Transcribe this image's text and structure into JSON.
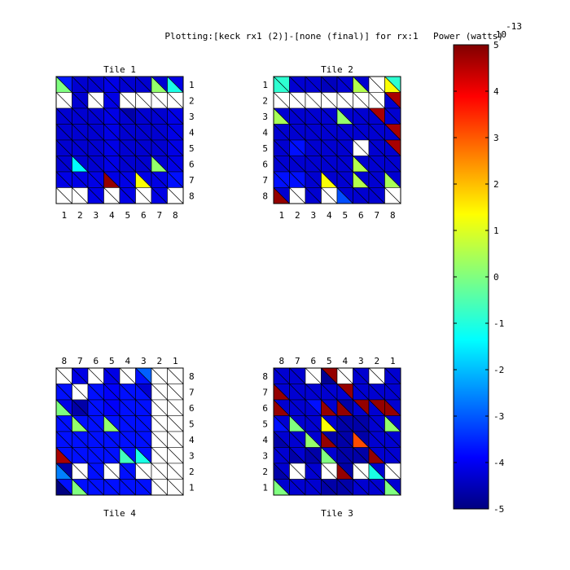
{
  "chart_data": {
    "type": "heatmap",
    "title": "Plotting:[keck rx1 (2)]-[none (final)] for rx:1",
    "colorbar": {
      "label": "Power (watts)",
      "exponent_label": "10",
      "exponent_power": "-13",
      "ticks": [
        5,
        4,
        3,
        2,
        1,
        0,
        -1,
        -2,
        -3,
        -4,
        -5
      ],
      "range": [
        -5,
        5
      ],
      "colormap": "jet"
    },
    "cell_encoding": "each cell split along its diagonal into two triangles (upper-right and lower-left); values in units of 1e-13 W; null = white/no data",
    "tiles": [
      {
        "title": "Tile 1",
        "col_labels": [
          "1",
          "2",
          "3",
          "4",
          "5",
          "6",
          "7",
          "8"
        ],
        "row_labels": [
          "1",
          "2",
          "3",
          "4",
          "5",
          "6",
          "7",
          "8"
        ],
        "upper": [
          [
            -3.5,
            -4.2,
            -4.2,
            -4.0,
            -4.2,
            -4.2,
            -4.2,
            -4.0
          ],
          [
            null,
            -4.2,
            null,
            -4.0,
            null,
            null,
            null,
            null
          ],
          [
            -4.2,
            -4.2,
            -4.2,
            -4.0,
            -4.6,
            -4.2,
            -4.2,
            -4.0
          ],
          [
            -4.2,
            -4.2,
            -4.2,
            -4.0,
            -4.2,
            -4.2,
            -4.2,
            -4.0
          ],
          [
            -4.2,
            -4.2,
            -4.2,
            -4.0,
            -4.2,
            -4.2,
            -4.2,
            -4.0
          ],
          [
            -4.2,
            -4.2,
            -4.2,
            -4.0,
            -4.2,
            -4.2,
            -4.2,
            -4.0
          ],
          [
            -4.0,
            -4.0,
            -4.0,
            -4.0,
            -4.0,
            -4.0,
            -4.0,
            -3.6
          ],
          [
            null,
            null,
            -4.0,
            null,
            -4.0,
            null,
            -4.0,
            null
          ]
        ],
        "lower": [
          [
            0.0,
            -4.2,
            -4.2,
            -4.0,
            -4.2,
            -4.2,
            0.2,
            -1.0
          ],
          [
            null,
            -4.2,
            null,
            -4.0,
            null,
            null,
            null,
            null
          ],
          [
            -4.2,
            -4.2,
            -4.2,
            -4.0,
            -4.2,
            -4.2,
            -4.2,
            -4.0
          ],
          [
            -4.2,
            -4.2,
            -4.2,
            -4.0,
            -4.2,
            -4.2,
            -4.2,
            -4.0
          ],
          [
            -4.2,
            -4.2,
            -4.2,
            -4.0,
            -4.2,
            -4.2,
            -4.2,
            -4.0
          ],
          [
            -4.2,
            -1.3,
            -4.2,
            -4.0,
            -4.2,
            -4.2,
            0.2,
            -4.0
          ],
          [
            -4.0,
            -4.0,
            -4.0,
            4.8,
            -4.0,
            1.2,
            -4.0,
            -3.6
          ],
          [
            null,
            null,
            -4.0,
            null,
            -4.0,
            null,
            -4.0,
            null
          ]
        ]
      },
      {
        "title": "Tile 2",
        "col_labels": [
          "1",
          "2",
          "3",
          "4",
          "5",
          "6",
          "7",
          "8"
        ],
        "row_labels": [
          "1",
          "2",
          "3",
          "4",
          "5",
          "6",
          "7",
          "8"
        ],
        "upper": [
          [
            -0.8,
            -4.2,
            -4.2,
            -4.4,
            -4.2,
            -4.2,
            null,
            -0.8
          ],
          [
            null,
            null,
            null,
            null,
            null,
            null,
            null,
            4.6
          ],
          [
            -4.2,
            -4.2,
            -4.2,
            -4.2,
            -4.2,
            -4.2,
            4.6,
            -4.2
          ],
          [
            -4.2,
            -4.2,
            -4.2,
            -4.2,
            -4.2,
            -4.2,
            -4.2,
            4.6
          ],
          [
            -4.2,
            -3.6,
            -4.2,
            -4.2,
            -4.2,
            null,
            -4.2,
            4.6
          ],
          [
            -4.2,
            -4.2,
            -4.2,
            -4.2,
            -4.2,
            -4.2,
            -4.2,
            -4.2
          ],
          [
            -3.6,
            -3.6,
            -4.2,
            -4.2,
            -4.2,
            -4.2,
            -4.2,
            -4.2
          ],
          [
            -4.2,
            null,
            -4.2,
            null,
            -4.2,
            -4.2,
            -4.2,
            null
          ]
        ],
        "lower": [
          [
            -0.8,
            -4.2,
            -4.2,
            -4.4,
            -4.2,
            0.5,
            null,
            1.2
          ],
          [
            null,
            null,
            null,
            null,
            null,
            null,
            null,
            -4.2
          ],
          [
            0.4,
            -4.2,
            -4.2,
            -4.2,
            0.2,
            -4.2,
            -4.2,
            -4.2
          ],
          [
            -4.2,
            -4.2,
            -4.2,
            -4.2,
            -4.2,
            -4.2,
            -4.2,
            -4.2
          ],
          [
            -4.2,
            -3.6,
            -4.2,
            -4.2,
            -4.2,
            null,
            -4.2,
            -4.2
          ],
          [
            -4.2,
            -4.2,
            -4.2,
            -4.2,
            -4.2,
            0.5,
            -4.2,
            -4.2
          ],
          [
            -3.6,
            -3.6,
            -4.2,
            1.2,
            -4.2,
            0.5,
            -4.2,
            0.4
          ],
          [
            4.8,
            null,
            -4.2,
            null,
            -3.0,
            -4.2,
            -4.2,
            null
          ]
        ]
      },
      {
        "title": "Tile 4",
        "col_labels": [
          "8",
          "7",
          "6",
          "5",
          "4",
          "3",
          "2",
          "1"
        ],
        "row_labels": [
          "8",
          "7",
          "6",
          "5",
          "4",
          "3",
          "2",
          "1"
        ],
        "upper": [
          [
            null,
            -4.0,
            null,
            -4.0,
            null,
            -2.8,
            null,
            null
          ],
          [
            -3.6,
            null,
            -3.6,
            -3.8,
            -3.6,
            -4.2,
            null,
            null
          ],
          [
            -4.0,
            -4.6,
            -3.6,
            -3.8,
            -3.6,
            -3.6,
            null,
            null
          ],
          [
            -3.6,
            -3.6,
            -3.6,
            -3.6,
            -3.6,
            -3.6,
            null,
            null
          ],
          [
            -3.6,
            -3.6,
            -3.6,
            -3.6,
            -3.6,
            -3.6,
            null,
            null
          ],
          [
            -3.6,
            -3.6,
            -3.6,
            -3.6,
            -3.6,
            -3.6,
            null,
            null
          ],
          [
            -4.6,
            null,
            -3.6,
            null,
            -3.6,
            null,
            null,
            null
          ],
          [
            -3.6,
            -3.6,
            -3.6,
            -3.6,
            -3.6,
            -3.6,
            null,
            null
          ]
        ],
        "lower": [
          [
            null,
            -4.0,
            null,
            -4.0,
            null,
            -3.6,
            null,
            null
          ],
          [
            -3.6,
            null,
            -3.6,
            -3.8,
            -3.6,
            -3.6,
            null,
            null
          ],
          [
            0.0,
            -4.6,
            -3.6,
            -3.8,
            -3.6,
            -3.6,
            null,
            null
          ],
          [
            -3.6,
            0.2,
            -3.6,
            0.2,
            -3.6,
            -3.6,
            null,
            null
          ],
          [
            -3.6,
            -3.6,
            -3.6,
            -3.6,
            -3.6,
            -3.6,
            null,
            null
          ],
          [
            4.6,
            -3.6,
            -3.6,
            -3.6,
            -0.6,
            -1.0,
            null,
            null
          ],
          [
            -2.5,
            null,
            -3.6,
            null,
            -3.6,
            null,
            null,
            null
          ],
          [
            -5.0,
            0.0,
            -3.6,
            -3.6,
            -3.6,
            -3.6,
            null,
            null
          ]
        ]
      },
      {
        "title": "Tile 3",
        "col_labels": [
          "8",
          "7",
          "6",
          "5",
          "4",
          "3",
          "2",
          "1"
        ],
        "row_labels": [
          "8",
          "7",
          "6",
          "5",
          "4",
          "3",
          "2",
          "1"
        ],
        "upper": [
          [
            -4.2,
            -4.2,
            null,
            4.8,
            null,
            -4.2,
            null,
            -4.2
          ],
          [
            -4.2,
            -4.2,
            -4.2,
            -4.2,
            4.8,
            -4.2,
            -4.2,
            -4.2
          ],
          [
            -4.2,
            -4.2,
            -3.6,
            -4.2,
            -4.6,
            4.8,
            4.8,
            -4.2
          ],
          [
            -4.2,
            -4.2,
            -4.2,
            -4.2,
            -4.6,
            -4.6,
            -4.2,
            -4.2
          ],
          [
            -4.2,
            -4.2,
            -4.2,
            -4.6,
            -4.6,
            -4.6,
            -4.2,
            -4.2
          ],
          [
            -4.2,
            -4.2,
            -4.6,
            -4.2,
            -4.6,
            -4.6,
            -4.2,
            -4.2
          ],
          [
            -4.2,
            null,
            -4.2,
            null,
            -4.6,
            null,
            -4.2,
            null
          ],
          [
            -4.2,
            -4.2,
            -4.2,
            -4.6,
            -4.6,
            -4.2,
            -4.2,
            -4.2
          ]
        ],
        "lower": [
          [
            -4.2,
            -4.2,
            null,
            -4.8,
            null,
            -4.2,
            null,
            -4.2
          ],
          [
            4.8,
            -4.2,
            -4.2,
            -4.2,
            -4.2,
            -4.2,
            -4.2,
            -4.2
          ],
          [
            4.8,
            -4.2,
            -4.2,
            4.8,
            4.8,
            -4.2,
            -4.2,
            4.8
          ],
          [
            -3.6,
            0.0,
            -4.2,
            1.2,
            -4.6,
            -4.6,
            -4.2,
            0.2
          ],
          [
            -4.6,
            -4.2,
            0.2,
            4.8,
            -4.6,
            3.0,
            -4.2,
            -4.2
          ],
          [
            -4.2,
            -4.6,
            -4.6,
            0.0,
            -4.6,
            -4.6,
            4.8,
            -4.2
          ],
          [
            -4.6,
            null,
            -4.2,
            null,
            4.8,
            null,
            -1.0,
            null
          ],
          [
            0.0,
            -4.2,
            -4.2,
            -4.6,
            -4.6,
            -4.2,
            -4.2,
            0.0
          ]
        ]
      }
    ]
  }
}
